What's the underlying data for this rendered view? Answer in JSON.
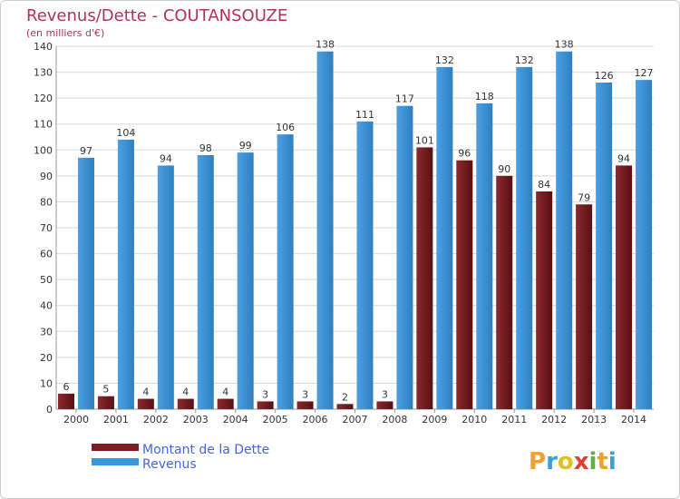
{
  "chart_data": {
    "type": "bar",
    "title": "Revenus/Dette - COUTANSOUZE",
    "subtitle": "(en milliers d'€)",
    "categories": [
      "2000",
      "2001",
      "2002",
      "2003",
      "2004",
      "2005",
      "2006",
      "2007",
      "2008",
      "2009",
      "2010",
      "2011",
      "2012",
      "2013",
      "2014"
    ],
    "series": [
      {
        "name": "Montant de la Dette",
        "color": "#7a1e22",
        "values": [
          6,
          5,
          4,
          4,
          4,
          3,
          3,
          2,
          3,
          101,
          96,
          90,
          84,
          79,
          94
        ]
      },
      {
        "name": "Revenus",
        "color": "#3d94d8",
        "values": [
          97,
          104,
          94,
          98,
          99,
          106,
          138,
          111,
          117,
          132,
          118,
          132,
          138,
          126,
          127
        ]
      }
    ],
    "ylim": [
      0,
      140
    ],
    "yticks": [
      0,
      10,
      20,
      30,
      40,
      50,
      60,
      70,
      80,
      90,
      100,
      110,
      120,
      130,
      140
    ],
    "grid": true,
    "legend_position": "bottom-left"
  },
  "brand": {
    "letters": [
      "P",
      "r",
      "o",
      "x",
      "i",
      "t",
      "i"
    ],
    "colors": [
      "#f0a030",
      "#3aa0d8",
      "#e0c020",
      "#e04030",
      "#60b040",
      "#f0a030",
      "#3aa0d8"
    ]
  }
}
